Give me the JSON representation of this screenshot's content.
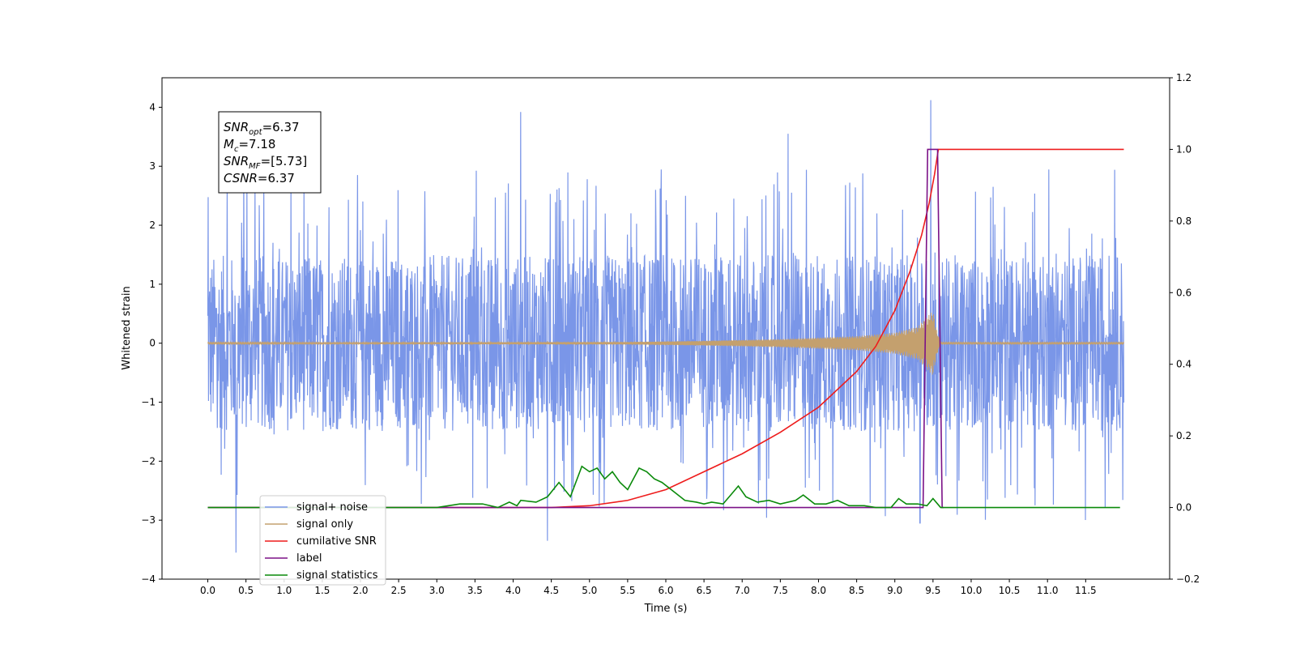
{
  "chart_data": {
    "type": "line",
    "xlabel": "Time (s)",
    "ylabel": "Whitened strain",
    "xlim": [
      -0.6,
      12.6
    ],
    "ylim": [
      -4,
      4.5
    ],
    "y2lim": [
      -0.2,
      1.2
    ],
    "x_ticks": [
      "0.0",
      "0.5",
      "1.0",
      "1.5",
      "2.0",
      "2.5",
      "3.0",
      "3.5",
      "4.0",
      "4.5",
      "5.0",
      "5.5",
      "6.0",
      "6.5",
      "7.0",
      "7.5",
      "8.0",
      "8.5",
      "9.0",
      "9.5",
      "10.0",
      "10.5",
      "11.0",
      "11.5"
    ],
    "y_ticks": [
      "−4",
      "−3",
      "−2",
      "−1",
      "0",
      "1",
      "2",
      "3",
      "4"
    ],
    "y2_ticks": [
      "−0.2",
      "0.0",
      "0.2",
      "0.4",
      "0.6",
      "0.8",
      "1.0",
      "1.2"
    ],
    "grid": false,
    "legend_position": "bottom-left",
    "annotation": {
      "lines": [
        {
          "sym": "SNR",
          "sub": "opt",
          "val": "=6.37"
        },
        {
          "sym": "M",
          "sub": "c",
          "val": "=7.18"
        },
        {
          "sym": "SNR",
          "sub": "MF",
          "val": "=[5.73]"
        },
        {
          "sym": "CSNR",
          "sub": "",
          "val": "=6.37"
        }
      ]
    },
    "series": [
      {
        "name": "signal+ noise",
        "color": "#7a96e8",
        "axis": "left",
        "kind": "noise",
        "x_range": [
          0,
          12
        ],
        "band": [
          -1.3,
          1.3
        ],
        "peak_range": [
          -3.5,
          4.1
        ],
        "extremes": [
          [
            0.37,
            -3.55
          ],
          [
            4.1,
            3.92
          ],
          [
            7.6,
            3.55
          ],
          [
            9.47,
            4.12
          ],
          [
            4.45,
            -3.35
          ],
          [
            9.33,
            -3.05
          ]
        ]
      },
      {
        "name": "signal only",
        "color": "#c4a06e",
        "axis": "left",
        "kind": "chirp",
        "x_range": [
          0,
          12
        ],
        "envelope": [
          [
            0,
            0.01
          ],
          [
            5.5,
            0.02
          ],
          [
            6.5,
            0.04
          ],
          [
            7.5,
            0.07
          ],
          [
            8.5,
            0.12
          ],
          [
            9.0,
            0.18
          ],
          [
            9.3,
            0.28
          ],
          [
            9.5,
            0.55
          ],
          [
            9.55,
            0.2
          ],
          [
            9.6,
            0.01
          ],
          [
            12,
            0.01
          ]
        ]
      },
      {
        "name": "cumilative SNR",
        "color": "#ee1c1c",
        "axis": "right",
        "points": [
          [
            0,
            0
          ],
          [
            4.5,
            0
          ],
          [
            5.0,
            0.005
          ],
          [
            5.5,
            0.02
          ],
          [
            6.0,
            0.05
          ],
          [
            6.5,
            0.1
          ],
          [
            7.0,
            0.15
          ],
          [
            7.5,
            0.21
          ],
          [
            8.0,
            0.28
          ],
          [
            8.5,
            0.38
          ],
          [
            8.75,
            0.45
          ],
          [
            9.0,
            0.55
          ],
          [
            9.2,
            0.66
          ],
          [
            9.35,
            0.76
          ],
          [
            9.45,
            0.85
          ],
          [
            9.52,
            0.93
          ],
          [
            9.57,
            1.0
          ],
          [
            12,
            1.0
          ]
        ]
      },
      {
        "name": "label",
        "color": "#7b1187",
        "axis": "right",
        "points": [
          [
            0,
            0
          ],
          [
            9.37,
            0
          ],
          [
            9.43,
            1.0
          ],
          [
            9.56,
            1.0
          ],
          [
            9.62,
            0
          ],
          [
            9.64,
            0
          ]
        ]
      },
      {
        "name": "signal statistics",
        "color": "#0a8a0a",
        "axis": "right",
        "points": [
          [
            0,
            0
          ],
          [
            3.0,
            0
          ],
          [
            3.3,
            0.01
          ],
          [
            3.6,
            0.01
          ],
          [
            3.8,
            0.0
          ],
          [
            3.95,
            0.015
          ],
          [
            4.05,
            0.005
          ],
          [
            4.1,
            0.02
          ],
          [
            4.3,
            0.015
          ],
          [
            4.45,
            0.03
          ],
          [
            4.6,
            0.07
          ],
          [
            4.75,
            0.03
          ],
          [
            4.9,
            0.115
          ],
          [
            5.0,
            0.1
          ],
          [
            5.1,
            0.11
          ],
          [
            5.2,
            0.08
          ],
          [
            5.3,
            0.1
          ],
          [
            5.4,
            0.07
          ],
          [
            5.5,
            0.05
          ],
          [
            5.65,
            0.11
          ],
          [
            5.75,
            0.1
          ],
          [
            5.85,
            0.08
          ],
          [
            5.95,
            0.07
          ],
          [
            6.1,
            0.045
          ],
          [
            6.25,
            0.02
          ],
          [
            6.4,
            0.015
          ],
          [
            6.5,
            0.01
          ],
          [
            6.6,
            0.015
          ],
          [
            6.75,
            0.01
          ],
          [
            6.85,
            0.035
          ],
          [
            6.95,
            0.06
          ],
          [
            7.05,
            0.03
          ],
          [
            7.2,
            0.015
          ],
          [
            7.35,
            0.02
          ],
          [
            7.5,
            0.01
          ],
          [
            7.7,
            0.02
          ],
          [
            7.8,
            0.035
          ],
          [
            7.95,
            0.01
          ],
          [
            8.1,
            0.01
          ],
          [
            8.25,
            0.02
          ],
          [
            8.4,
            0.005
          ],
          [
            8.6,
            0.005
          ],
          [
            8.75,
            0.0
          ],
          [
            8.95,
            0.0
          ],
          [
            9.05,
            0.025
          ],
          [
            9.15,
            0.01
          ],
          [
            9.3,
            0.01
          ],
          [
            9.42,
            0.005
          ],
          [
            9.5,
            0.025
          ],
          [
            9.6,
            0.0
          ],
          [
            11.95,
            0.0
          ]
        ]
      }
    ]
  }
}
